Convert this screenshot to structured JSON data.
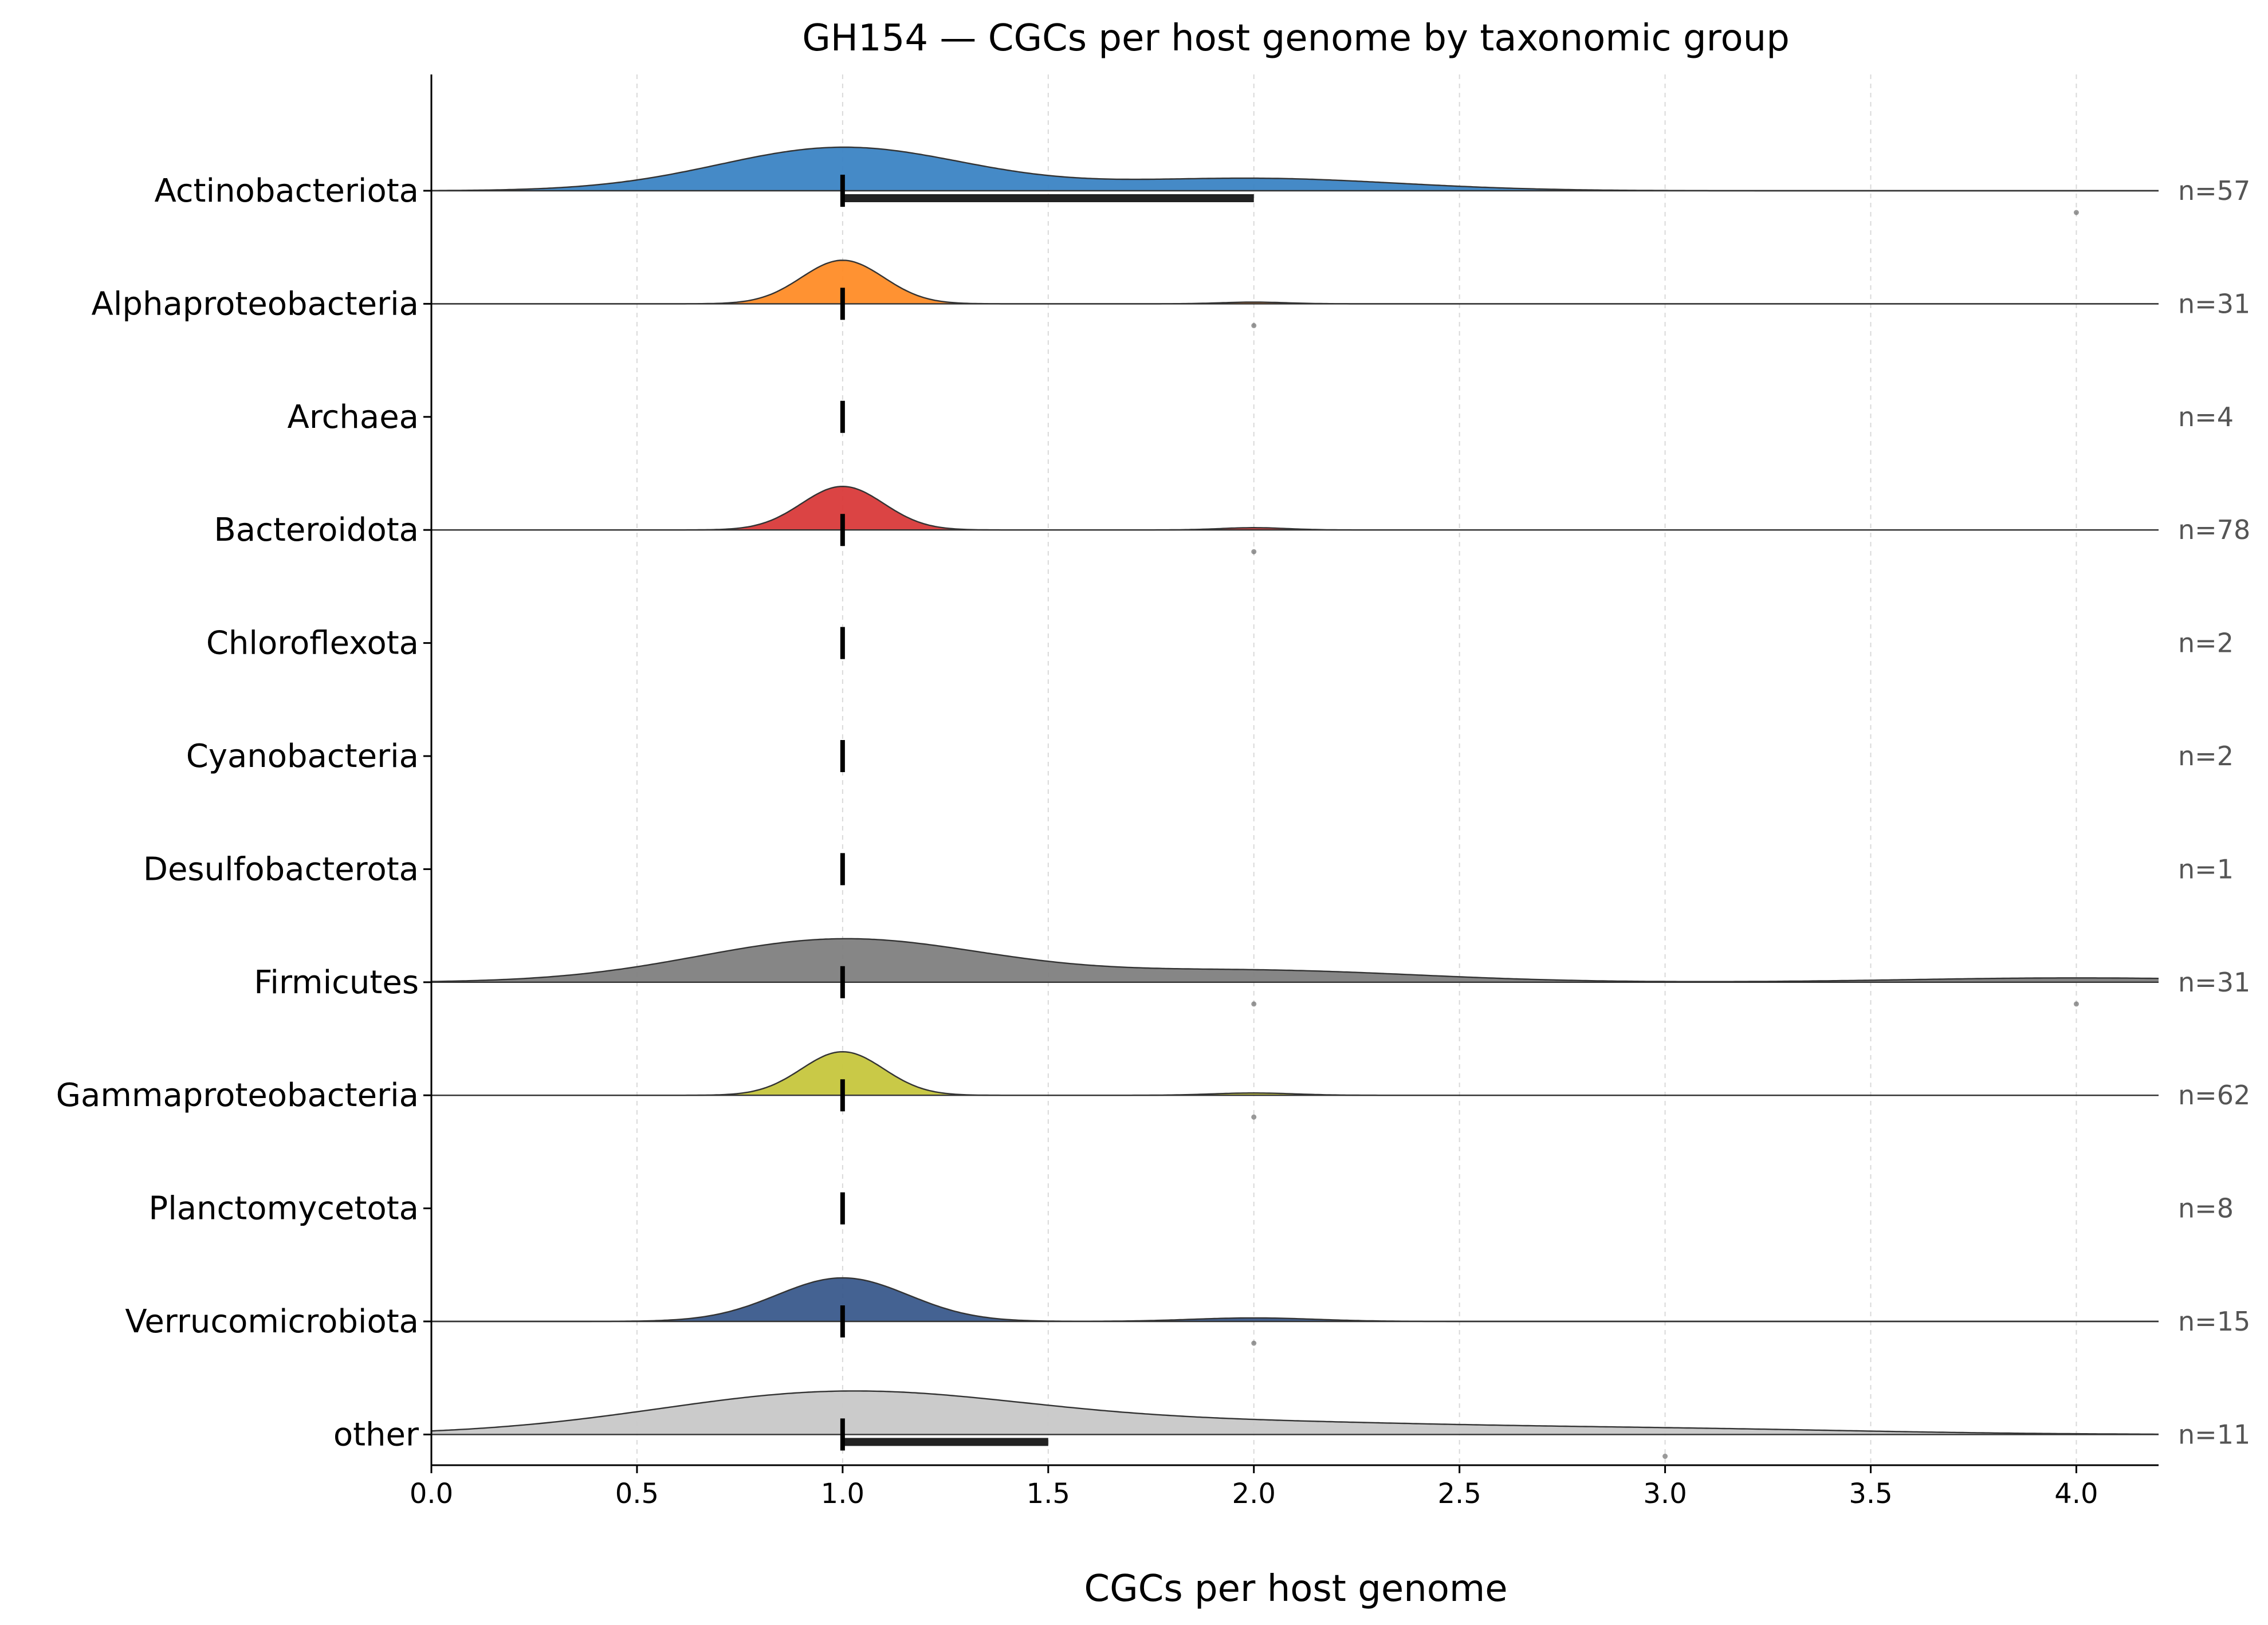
{
  "chart_data": {
    "type": "ridgeline",
    "title": "GH154 — CGCs per host genome by taxonomic group",
    "xlabel": "CGCs per host genome",
    "xlim": [
      0.0,
      4.2
    ],
    "xticks": [
      "0.0",
      "0.5",
      "1.0",
      "1.5",
      "2.0",
      "2.5",
      "3.0",
      "3.5",
      "4.0"
    ],
    "grid": "x-dashed",
    "groups": [
      {
        "name": "Actinobacteriota",
        "n_label": "n=57",
        "color": "#3b84c4",
        "median": 1.0,
        "q1": 1.0,
        "q3": 2.0,
        "outliers": [
          4.0
        ],
        "density": [
          {
            "mu": 1.0,
            "sd": 0.3,
            "w": 0.75
          },
          {
            "mu": 2.0,
            "sd": 0.35,
            "w": 0.25
          }
        ]
      },
      {
        "name": "Alphaproteobacteria",
        "n_label": "n=31",
        "color": "#ff8c27",
        "median": 1.0,
        "q1": 1.0,
        "q3": 1.0,
        "outliers": [
          2.0
        ],
        "density": [
          {
            "mu": 1.0,
            "sd": 0.1,
            "w": 0.97
          },
          {
            "mu": 2.0,
            "sd": 0.08,
            "w": 0.03
          }
        ]
      },
      {
        "name": "Archaea",
        "n_label": "n=4",
        "color": "#2ca02c",
        "median": 1.0,
        "q1": 1.0,
        "q3": 1.0,
        "outliers": [],
        "density": []
      },
      {
        "name": "Bacteroidota",
        "n_label": "n=78",
        "color": "#d93a3a",
        "median": 1.0,
        "q1": 1.0,
        "q3": 1.0,
        "outliers": [
          2.0
        ],
        "density": [
          {
            "mu": 1.0,
            "sd": 0.1,
            "w": 0.96
          },
          {
            "mu": 2.0,
            "sd": 0.08,
            "w": 0.04
          }
        ]
      },
      {
        "name": "Chloroflexota",
        "n_label": "n=2",
        "color": "#9467bd",
        "median": 1.0,
        "q1": 1.0,
        "q3": 1.0,
        "outliers": [],
        "density": []
      },
      {
        "name": "Cyanobacteria",
        "n_label": "n=2",
        "color": "#8c564b",
        "median": 1.0,
        "q1": 1.0,
        "q3": 1.0,
        "outliers": [],
        "density": []
      },
      {
        "name": "Desulfobacterota",
        "n_label": "n=1",
        "color": "#e377c2",
        "median": 1.0,
        "q1": 1.0,
        "q3": 1.0,
        "outliers": [],
        "density": []
      },
      {
        "name": "Firmicutes",
        "n_label": "n=31",
        "color": "#7f7f7f",
        "median": 1.0,
        "q1": 1.0,
        "q3": 1.0,
        "outliers": [
          2.0,
          4.0
        ],
        "density": [
          {
            "mu": 1.0,
            "sd": 0.35,
            "w": 0.7
          },
          {
            "mu": 2.0,
            "sd": 0.4,
            "w": 0.22
          },
          {
            "mu": 4.0,
            "sd": 0.4,
            "w": 0.08
          }
        ]
      },
      {
        "name": "Gammaproteobacteria",
        "n_label": "n=62",
        "color": "#c6c63d",
        "median": 1.0,
        "q1": 1.0,
        "q3": 1.0,
        "outliers": [
          2.0
        ],
        "density": [
          {
            "mu": 1.0,
            "sd": 0.1,
            "w": 0.95
          },
          {
            "mu": 2.0,
            "sd": 0.1,
            "w": 0.05
          }
        ]
      },
      {
        "name": "Planctomycetota",
        "n_label": "n=8",
        "color": "#17becf",
        "median": 1.0,
        "q1": 1.0,
        "q3": 1.0,
        "outliers": [],
        "density": []
      },
      {
        "name": "Verrucomicrobiota",
        "n_label": "n=15",
        "color": "#3a5a8c",
        "median": 1.0,
        "q1": 1.0,
        "q3": 1.0,
        "outliers": [
          2.0
        ],
        "density": [
          {
            "mu": 1.0,
            "sd": 0.16,
            "w": 0.93
          },
          {
            "mu": 2.0,
            "sd": 0.15,
            "w": 0.07
          }
        ]
      },
      {
        "name": "other",
        "n_label": "n=11",
        "color": "#c8c8c8",
        "median": 1.0,
        "q1": 1.0,
        "q3": 1.5,
        "outliers": [
          3.0
        ],
        "density": [
          {
            "mu": 1.0,
            "sd": 0.45,
            "w": 0.7
          },
          {
            "mu": 2.0,
            "sd": 0.5,
            "w": 0.2
          },
          {
            "mu": 3.0,
            "sd": 0.5,
            "w": 0.1
          }
        ]
      }
    ]
  }
}
